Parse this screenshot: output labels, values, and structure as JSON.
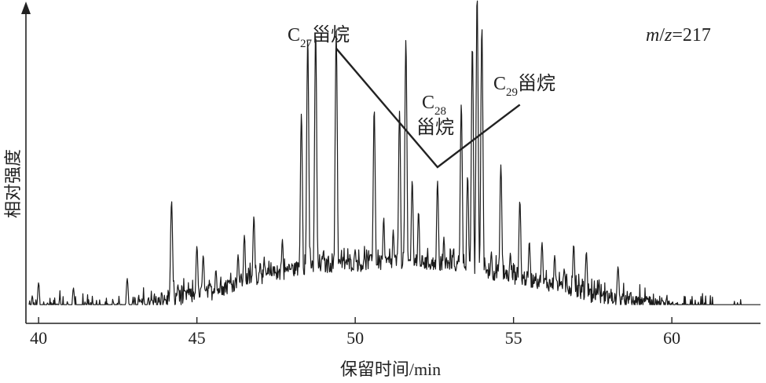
{
  "chart_data": {
    "type": "line",
    "xlabel": "保留时间/min",
    "ylabel": "相对强度",
    "mz_label": {
      "italic_m": "m",
      "slash": "/",
      "italic_z": "z",
      "value": "=217"
    },
    "xlim": [
      39.6,
      62.8
    ],
    "ylim": [
      0,
      100
    ],
    "x_ticks": [
      40,
      45,
      50,
      55,
      60
    ],
    "grid": false,
    "legend": "none",
    "annotations": [
      {
        "base": "C",
        "sub": "27",
        "text": "甾烷",
        "pattern_point": {
          "x": 49.4,
          "y": 88
        }
      },
      {
        "base": "C",
        "sub": "28",
        "text": "甾烷",
        "pattern_point": {
          "x": 52.6,
          "y": 50
        }
      },
      {
        "base": "C",
        "sub": "29",
        "text": "甾烷",
        "pattern_point": {
          "x": 55.2,
          "y": 70
        }
      }
    ],
    "baseline": [
      [
        39.6,
        2
      ],
      [
        40.5,
        5
      ],
      [
        41.5,
        4
      ],
      [
        42.5,
        4
      ],
      [
        43.5,
        6
      ],
      [
        44.5,
        8
      ],
      [
        45.5,
        10
      ],
      [
        46.5,
        14
      ],
      [
        47.5,
        16
      ],
      [
        48.5,
        18
      ],
      [
        49.5,
        19
      ],
      [
        50.5,
        19
      ],
      [
        51.5,
        20
      ],
      [
        52.5,
        19
      ],
      [
        53.5,
        18
      ],
      [
        54.5,
        16
      ],
      [
        55.5,
        14
      ],
      [
        56.5,
        12
      ],
      [
        57.5,
        9
      ],
      [
        58.5,
        7
      ],
      [
        59.5,
        5
      ],
      [
        60.5,
        4
      ],
      [
        61.5,
        3
      ],
      [
        62.8,
        1
      ]
    ],
    "peaks": [
      [
        39.8,
        8
      ],
      [
        40.0,
        12
      ],
      [
        40.3,
        5
      ],
      [
        40.7,
        4
      ],
      [
        41.1,
        10
      ],
      [
        41.6,
        5
      ],
      [
        41.9,
        4
      ],
      [
        42.3,
        5
      ],
      [
        42.8,
        13
      ],
      [
        43.2,
        6
      ],
      [
        43.6,
        5
      ],
      [
        44.2,
        37
      ],
      [
        44.4,
        10
      ],
      [
        44.7,
        8
      ],
      [
        45.0,
        22
      ],
      [
        45.2,
        19
      ],
      [
        45.6,
        14
      ],
      [
        46.0,
        10
      ],
      [
        46.3,
        18
      ],
      [
        46.5,
        24
      ],
      [
        46.8,
        30
      ],
      [
        47.0,
        15
      ],
      [
        47.4,
        12
      ],
      [
        47.7,
        22
      ],
      [
        48.0,
        14
      ],
      [
        48.3,
        62
      ],
      [
        48.5,
        86
      ],
      [
        48.75,
        88
      ],
      [
        49.0,
        18
      ],
      [
        49.4,
        88
      ],
      [
        49.7,
        14
      ],
      [
        50.0,
        18
      ],
      [
        50.3,
        16
      ],
      [
        50.6,
        63
      ],
      [
        50.9,
        28
      ],
      [
        51.2,
        24
      ],
      [
        51.4,
        62
      ],
      [
        51.6,
        85
      ],
      [
        51.8,
        40
      ],
      [
        52.0,
        30
      ],
      [
        52.3,
        14
      ],
      [
        52.6,
        40
      ],
      [
        52.8,
        22
      ],
      [
        53.1,
        18
      ],
      [
        53.35,
        65
      ],
      [
        53.55,
        42
      ],
      [
        53.7,
        84
      ],
      [
        53.85,
        100
      ],
      [
        54.0,
        90
      ],
      [
        54.3,
        18
      ],
      [
        54.6,
        46
      ],
      [
        54.9,
        18
      ],
      [
        55.2,
        35
      ],
      [
        55.5,
        22
      ],
      [
        55.9,
        22
      ],
      [
        56.3,
        18
      ],
      [
        56.6,
        14
      ],
      [
        56.9,
        22
      ],
      [
        57.3,
        20
      ],
      [
        57.7,
        10
      ],
      [
        58.3,
        16
      ],
      [
        58.7,
        6
      ],
      [
        59.2,
        7
      ],
      [
        59.8,
        4
      ],
      [
        60.5,
        3
      ],
      [
        61.0,
        4
      ],
      [
        61.6,
        5
      ],
      [
        62.0,
        4
      ],
      [
        62.5,
        3
      ]
    ]
  }
}
